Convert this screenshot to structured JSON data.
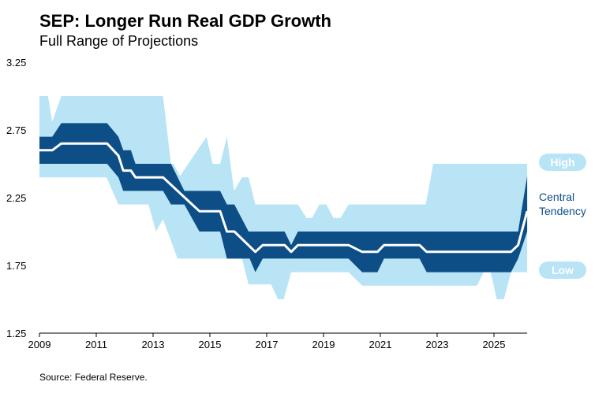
{
  "title": "SEP: Longer Run Real GDP Growth",
  "subtitle": "Full Range of Projections",
  "source": "Source: Federal Reserve.",
  "chart_data": {
    "type": "area",
    "title": "SEP: Longer Run Real GDP Growth",
    "subtitle": "Full Range of Projections",
    "xlabel": "",
    "ylabel": "",
    "xlim": [
      2009,
      2026.17
    ],
    "ylim": [
      1.25,
      3.25
    ],
    "x_ticks": [
      "2009",
      "2011",
      "2013",
      "2015",
      "2017",
      "2019",
      "2021",
      "2023",
      "2025"
    ],
    "y_ticks": [
      "3.25",
      "2.75",
      "2.25",
      "1.75",
      "1.25"
    ],
    "grid": false,
    "colors": {
      "range": "#b8e4f6",
      "central": "#0d4e87",
      "median": "#ffffff"
    },
    "labels": {
      "high": "High",
      "central": "Central Tendency",
      "central_line1": "Central",
      "central_line2": "Tendency",
      "low": "Low"
    },
    "range_high": [
      [
        2009,
        3.0
      ],
      [
        2009.3,
        3.0
      ],
      [
        2009.45,
        2.81
      ],
      [
        2009.77,
        3.0
      ],
      [
        2013.35,
        3.0
      ],
      [
        2013.63,
        2.5
      ],
      [
        2013.72,
        2.5
      ],
      [
        2013.95,
        2.41
      ],
      [
        2014.88,
        2.7
      ],
      [
        2015.1,
        2.5
      ],
      [
        2015.36,
        2.5
      ],
      [
        2015.6,
        2.7
      ],
      [
        2015.85,
        2.3
      ],
      [
        2016.13,
        2.4
      ],
      [
        2016.36,
        2.4
      ],
      [
        2016.6,
        2.2
      ],
      [
        2018.1,
        2.2
      ],
      [
        2018.4,
        2.1
      ],
      [
        2018.6,
        2.1
      ],
      [
        2018.85,
        2.2
      ],
      [
        2019.1,
        2.2
      ],
      [
        2019.35,
        2.1
      ],
      [
        2019.6,
        2.1
      ],
      [
        2019.88,
        2.2
      ],
      [
        2022.6,
        2.2
      ],
      [
        2022.86,
        2.5
      ],
      [
        2026.17,
        2.5
      ]
    ],
    "range_low": [
      [
        2009,
        2.4
      ],
      [
        2011.36,
        2.4
      ],
      [
        2011.78,
        2.2
      ],
      [
        2012.84,
        2.2
      ],
      [
        2013.1,
        2.0
      ],
      [
        2013.35,
        2.09
      ],
      [
        2013.86,
        1.8
      ],
      [
        2016.13,
        1.8
      ],
      [
        2016.36,
        1.61
      ],
      [
        2017.15,
        1.61
      ],
      [
        2017.4,
        1.5
      ],
      [
        2017.6,
        1.5
      ],
      [
        2017.86,
        1.7
      ],
      [
        2019.88,
        1.7
      ],
      [
        2020.36,
        1.6
      ],
      [
        2024.4,
        1.6
      ],
      [
        2024.64,
        1.7
      ],
      [
        2024.88,
        1.7
      ],
      [
        2025.1,
        1.5
      ],
      [
        2025.35,
        1.5
      ],
      [
        2025.6,
        1.7
      ],
      [
        2026.17,
        1.7
      ]
    ],
    "central_high": [
      [
        2009,
        2.7
      ],
      [
        2009.45,
        2.7
      ],
      [
        2009.77,
        2.8
      ],
      [
        2011.38,
        2.8
      ],
      [
        2011.78,
        2.7
      ],
      [
        2011.95,
        2.6
      ],
      [
        2012.22,
        2.6
      ],
      [
        2012.38,
        2.5
      ],
      [
        2013.63,
        2.5
      ],
      [
        2014.1,
        2.3
      ],
      [
        2015.36,
        2.3
      ],
      [
        2015.6,
        2.2
      ],
      [
        2015.86,
        2.2
      ],
      [
        2016.36,
        2.0
      ],
      [
        2017.63,
        2.0
      ],
      [
        2017.86,
        1.9
      ],
      [
        2018.1,
        2.0
      ],
      [
        2025.85,
        2.0
      ],
      [
        2026.17,
        2.41
      ]
    ],
    "central_low": [
      [
        2009,
        2.5
      ],
      [
        2011.38,
        2.5
      ],
      [
        2011.78,
        2.4
      ],
      [
        2011.95,
        2.3
      ],
      [
        2013.35,
        2.3
      ],
      [
        2013.63,
        2.2
      ],
      [
        2014.1,
        2.2
      ],
      [
        2014.63,
        2.0
      ],
      [
        2015.36,
        2.0
      ],
      [
        2015.6,
        1.8
      ],
      [
        2016.4,
        1.8
      ],
      [
        2016.6,
        1.7
      ],
      [
        2016.86,
        1.8
      ],
      [
        2019.88,
        1.8
      ],
      [
        2020.36,
        1.7
      ],
      [
        2020.9,
        1.7
      ],
      [
        2021.13,
        1.8
      ],
      [
        2022.38,
        1.8
      ],
      [
        2022.63,
        1.7
      ],
      [
        2025.6,
        1.7
      ],
      [
        2025.85,
        1.8
      ],
      [
        2026.17,
        2.0
      ]
    ],
    "median": [
      [
        2009,
        2.6
      ],
      [
        2009.45,
        2.6
      ],
      [
        2009.77,
        2.65
      ],
      [
        2011.38,
        2.65
      ],
      [
        2011.78,
        2.56
      ],
      [
        2011.95,
        2.45
      ],
      [
        2012.22,
        2.45
      ],
      [
        2012.38,
        2.4
      ],
      [
        2013.35,
        2.4
      ],
      [
        2014.63,
        2.15
      ],
      [
        2015.36,
        2.15
      ],
      [
        2015.6,
        2.0
      ],
      [
        2015.86,
        2.0
      ],
      [
        2016.6,
        1.85
      ],
      [
        2016.86,
        1.9
      ],
      [
        2017.63,
        1.9
      ],
      [
        2017.86,
        1.85
      ],
      [
        2018.1,
        1.9
      ],
      [
        2019.88,
        1.9
      ],
      [
        2020.36,
        1.85
      ],
      [
        2020.9,
        1.85
      ],
      [
        2021.13,
        1.9
      ],
      [
        2022.38,
        1.9
      ],
      [
        2022.63,
        1.85
      ],
      [
        2025.6,
        1.85
      ],
      [
        2025.85,
        1.9
      ],
      [
        2026.17,
        2.15
      ]
    ]
  }
}
